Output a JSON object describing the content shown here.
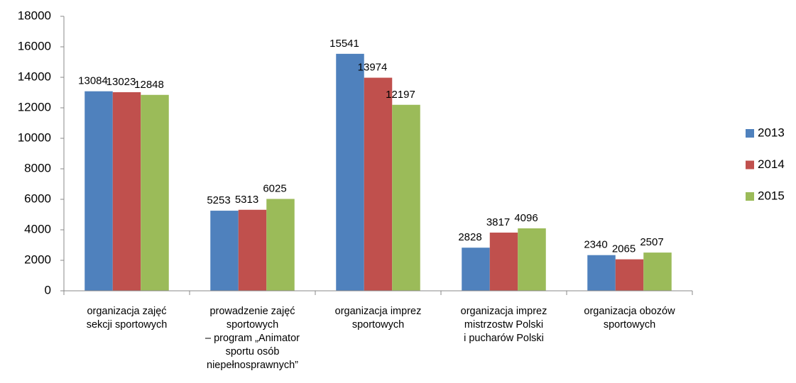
{
  "chart_data": {
    "type": "bar",
    "categories": [
      "organizacja zajęć\nsekcji sportowych",
      "prowadzenie zajęć\nsportowych\n– program „Animator\nsportu osób\nniepełnosprawnych”",
      "organizacja imprez\nsportowych",
      "organizacja imprez\nmistrzostw Polski\ni pucharów Polski",
      "organizacja obozów\nsportowych"
    ],
    "series": [
      {
        "name": "2013",
        "color": "#4f81bd",
        "values": [
          13084,
          5253,
          15541,
          2828,
          2340
        ]
      },
      {
        "name": "2014",
        "color": "#c0504d",
        "values": [
          13023,
          5313,
          13974,
          3817,
          2065
        ]
      },
      {
        "name": "2015",
        "color": "#9bbb59",
        "values": [
          12848,
          6025,
          12197,
          4096,
          2507
        ]
      }
    ],
    "ylim": [
      0,
      18000
    ],
    "yticks": [
      0,
      2000,
      4000,
      6000,
      8000,
      10000,
      12000,
      14000,
      16000,
      18000
    ],
    "grid": false,
    "legend": "right"
  }
}
